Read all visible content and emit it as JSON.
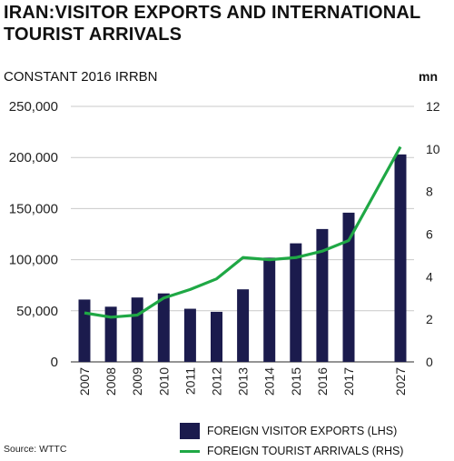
{
  "title": "IRAN:VISITOR EXPORTS AND INTERNATIONAL TOURIST ARRIVALS",
  "subtitle": "CONSTANT 2016 IRRBN",
  "rhs_unit": "mn",
  "source": "Source: WTTC",
  "colors": {
    "bars": "#1b1b4d",
    "line": "#1fa845",
    "grid": "#c9c9c9"
  },
  "chart_data": {
    "type": "bar",
    "categories": [
      "2007",
      "2008",
      "2009",
      "2010",
      "2011",
      "2012",
      "2013",
      "2014",
      "2015",
      "2016",
      "2017",
      "2027"
    ],
    "series": [
      {
        "name": "FOREIGN VISITOR EXPORTS (LHS)",
        "type": "bar",
        "axis": "left",
        "values": [
          61000,
          54000,
          63000,
          67000,
          52000,
          49000,
          71000,
          102000,
          116000,
          130000,
          146000,
          203000
        ]
      },
      {
        "name": "FOREIGN TOURIST ARRIVALS (RHS)",
        "type": "line",
        "axis": "right",
        "values": [
          2.3,
          2.1,
          2.2,
          3.0,
          3.4,
          3.9,
          4.9,
          4.8,
          4.9,
          5.2,
          5.7,
          10.1
        ]
      }
    ],
    "yleft": {
      "ticks": [
        "0",
        "50,000",
        "100,000",
        "150,000",
        "200,000",
        "250,000"
      ],
      "lim": [
        0,
        250000
      ]
    },
    "yright": {
      "ticks": [
        "0",
        "2",
        "4",
        "6",
        "8",
        "10",
        "12"
      ],
      "lim": [
        0,
        12
      ]
    },
    "grid": true,
    "legend": "bottom-right"
  }
}
